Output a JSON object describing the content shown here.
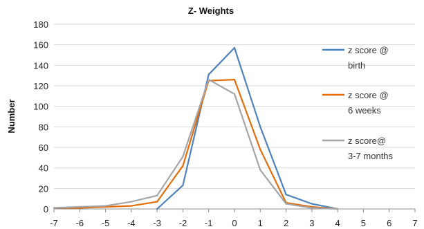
{
  "chart_data": {
    "type": "line",
    "title": "Z- Weights",
    "xlabel": "",
    "ylabel": "Number",
    "ylim": [
      0,
      180
    ],
    "xlim": [
      -7,
      7
    ],
    "yticks": [
      0,
      20,
      40,
      60,
      80,
      100,
      120,
      140,
      160,
      180
    ],
    "xticks": [
      -7,
      -6,
      -5,
      -4,
      -3,
      -2,
      -1,
      0,
      1,
      2,
      3,
      4,
      5,
      6,
      7
    ],
    "grid": "horizontal",
    "legend": "right",
    "series": [
      {
        "name": "z score @ birth",
        "legend_lines": [
          "z score @",
          "birth"
        ],
        "color": "#4f81bd",
        "points": [
          [
            -3,
            0
          ],
          [
            -2,
            23
          ],
          [
            -1,
            131
          ],
          [
            0,
            157
          ],
          [
            1,
            80
          ],
          [
            2,
            14
          ],
          [
            3,
            5
          ],
          [
            4,
            0
          ]
        ]
      },
      {
        "name": "z score @ 6 weeks",
        "legend_lines": [
          "z score @",
          "6 weeks"
        ],
        "color": "#e46c0a",
        "points": [
          [
            -7,
            1
          ],
          [
            -6,
            1
          ],
          [
            -5,
            2
          ],
          [
            -4,
            3
          ],
          [
            -3,
            7
          ],
          [
            -2,
            42
          ],
          [
            -1,
            125
          ],
          [
            0,
            126
          ],
          [
            1,
            58
          ],
          [
            2,
            6
          ],
          [
            3,
            2
          ],
          [
            4,
            0
          ]
        ]
      },
      {
        "name": "z score@ 3-7 months",
        "legend_lines": [
          "z score@",
          "3-7 months"
        ],
        "color": "#a5a5a5",
        "points": [
          [
            -7,
            1
          ],
          [
            -6,
            2
          ],
          [
            -5,
            3
          ],
          [
            -4,
            7
          ],
          [
            -3,
            13
          ],
          [
            -2,
            51
          ],
          [
            -1,
            126
          ],
          [
            0,
            112
          ],
          [
            1,
            38
          ],
          [
            2,
            5
          ],
          [
            3,
            1
          ],
          [
            4,
            0
          ]
        ]
      }
    ]
  }
}
